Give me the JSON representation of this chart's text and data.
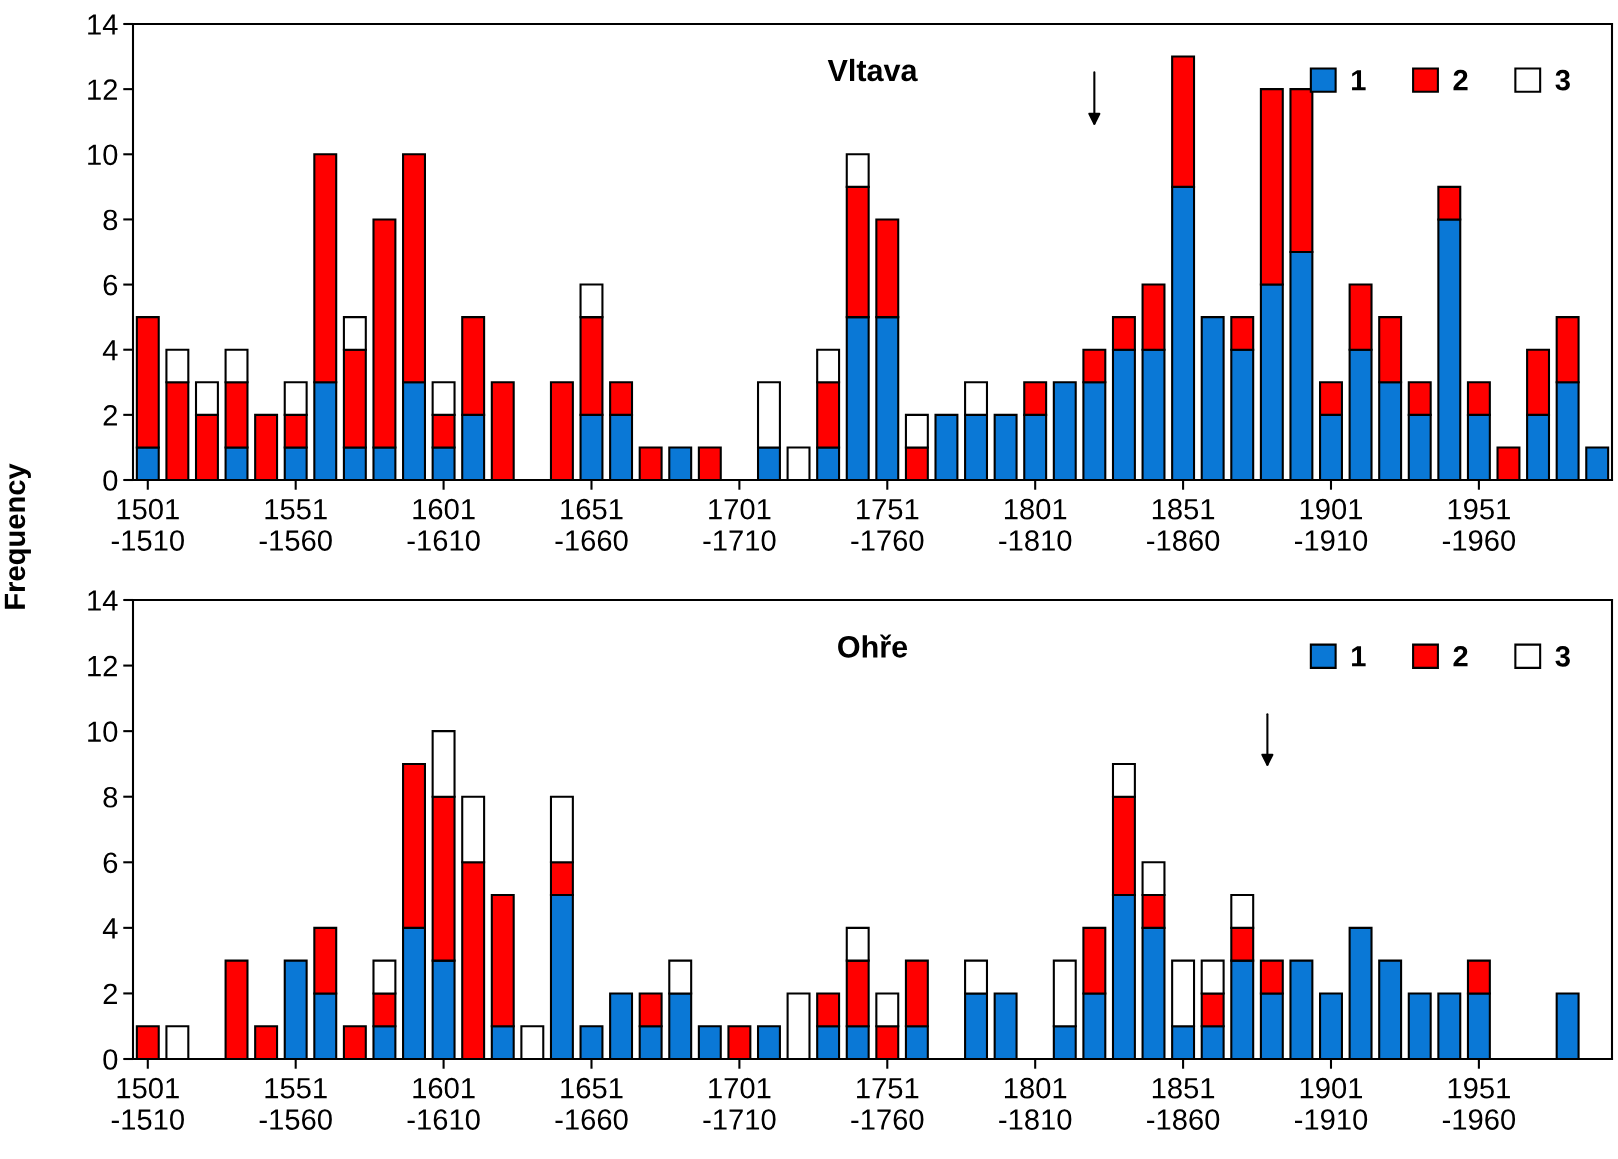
{
  "chart_data": [
    {
      "type": "bar",
      "stacked": true,
      "title": "Vltava",
      "ylabel": "Frequency",
      "legend": "top right",
      "categories": [
        "1501\n-1510",
        null,
        null,
        null,
        null,
        "1551\n-1560",
        null,
        null,
        null,
        null,
        "1601\n-1610",
        null,
        null,
        null,
        null,
        "1651\n-1660",
        null,
        null,
        null,
        null,
        "1701\n-1710",
        null,
        null,
        null,
        null,
        "1751\n-1760",
        null,
        null,
        null,
        null,
        "1801\n-1810",
        null,
        null,
        null,
        null,
        "1851\n-1860",
        null,
        null,
        null,
        null,
        "1901\n-1910",
        null,
        null,
        null,
        null,
        "1951\n-1960",
        null,
        null,
        null,
        null
      ],
      "ylim": [
        0,
        14
      ],
      "yticks": [
        0,
        2,
        4,
        6,
        8,
        10,
        12,
        14
      ],
      "series": [
        {
          "name": "1",
          "color": "#0a78d6",
          "values": [
            1,
            0,
            0,
            1,
            0,
            1,
            3,
            1,
            1,
            3,
            1,
            2,
            0,
            0,
            0,
            2,
            2,
            0,
            1,
            0,
            0,
            1,
            0,
            1,
            5,
            5,
            0,
            2,
            2,
            2,
            2,
            3,
            3,
            4,
            4,
            9,
            5,
            4,
            6,
            7,
            2,
            4,
            3,
            2,
            8,
            2,
            0,
            2,
            3,
            1
          ]
        },
        {
          "name": "2",
          "color": "#ff0000",
          "values": [
            4,
            3,
            2,
            2,
            2,
            1,
            7,
            3,
            7,
            7,
            1,
            3,
            3,
            0,
            3,
            3,
            1,
            1,
            0,
            1,
            0,
            0,
            0,
            2,
            4,
            3,
            1,
            0,
            0,
            0,
            1,
            0,
            1,
            1,
            2,
            4,
            0,
            1,
            6,
            5,
            1,
            2,
            2,
            1,
            1,
            1,
            1,
            2,
            2,
            0
          ]
        },
        {
          "name": "3",
          "color": "#ffffff",
          "values": [
            0,
            1,
            1,
            1,
            0,
            1,
            0,
            1,
            0,
            0,
            1,
            0,
            0,
            0,
            0,
            1,
            0,
            0,
            0,
            0,
            0,
            2,
            1,
            1,
            1,
            0,
            1,
            0,
            1,
            0,
            0,
            0,
            0,
            0,
            0,
            0,
            0,
            0,
            0,
            0,
            0,
            0,
            0,
            0,
            0,
            0,
            0,
            0,
            0,
            0
          ]
        }
      ]
    },
    {
      "type": "bar",
      "stacked": true,
      "title": "Ohře",
      "legend": "top right",
      "categories": [
        "1501\n-1510",
        null,
        null,
        null,
        null,
        "1551\n-1560",
        null,
        null,
        null,
        null,
        "1601\n-1610",
        null,
        null,
        null,
        null,
        "1651\n-1660",
        null,
        null,
        null,
        null,
        "1701\n-1710",
        null,
        null,
        null,
        null,
        "1751\n-1760",
        null,
        null,
        null,
        null,
        "1801\n-1810",
        null,
        null,
        null,
        null,
        "1851\n-1860",
        null,
        null,
        null,
        null,
        "1901\n-1910",
        null,
        null,
        null,
        null,
        "1951\n-1960",
        null,
        null,
        null,
        null
      ],
      "ylim": [
        0,
        14
      ],
      "yticks": [
        0,
        2,
        4,
        6,
        8,
        10,
        12,
        14
      ],
      "series": [
        {
          "name": "1",
          "color": "#0a78d6",
          "values": [
            0,
            0,
            0,
            0,
            0,
            3,
            2,
            0,
            1,
            4,
            3,
            0,
            1,
            0,
            5,
            1,
            2,
            1,
            2,
            1,
            0,
            1,
            0,
            1,
            1,
            0,
            1,
            0,
            2,
            2,
            0,
            1,
            2,
            5,
            4,
            1,
            1,
            3,
            2,
            3,
            2,
            4,
            3,
            2,
            2,
            2,
            0,
            0,
            2,
            0
          ]
        },
        {
          "name": "2",
          "color": "#ff0000",
          "values": [
            1,
            0,
            0,
            3,
            1,
            0,
            2,
            1,
            1,
            5,
            5,
            6,
            4,
            0,
            1,
            0,
            0,
            1,
            0,
            0,
            1,
            0,
            0,
            1,
            2,
            1,
            2,
            0,
            0,
            0,
            0,
            0,
            2,
            3,
            1,
            0,
            1,
            1,
            1,
            0,
            0,
            0,
            0,
            0,
            0,
            1,
            0,
            0,
            0,
            0
          ]
        },
        {
          "name": "3",
          "color": "#ffffff",
          "values": [
            0,
            1,
            0,
            0,
            0,
            0,
            0,
            0,
            1,
            0,
            2,
            2,
            0,
            1,
            2,
            0,
            0,
            0,
            1,
            0,
            0,
            0,
            2,
            0,
            1,
            1,
            0,
            0,
            1,
            0,
            0,
            2,
            0,
            1,
            1,
            2,
            1,
            1,
            0,
            0,
            0,
            0,
            0,
            0,
            0,
            0,
            0,
            0,
            0,
            0
          ]
        }
      ]
    }
  ]
}
